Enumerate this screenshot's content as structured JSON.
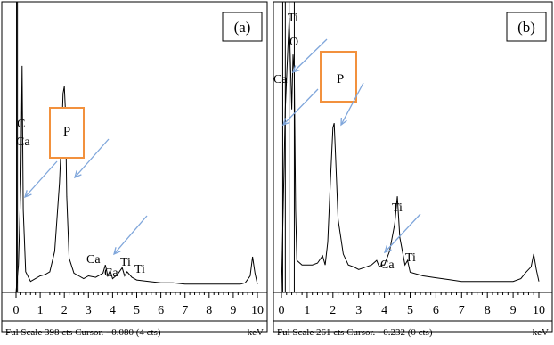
{
  "chart_data": [
    {
      "type": "line",
      "panel_label": "(a)",
      "xlabel": "keV",
      "x_ticks": [
        "0",
        "1",
        "2",
        "3",
        "4",
        "5",
        "6",
        "7",
        "8",
        "9",
        "10"
      ],
      "xlim": [
        0,
        10
      ],
      "footer": "Ful Scale 398 cts Cursor. −0.080 (4 cts)",
      "full_scale_cts": 398,
      "boxed_label": "P",
      "accent_color": "#F2913D",
      "arrow_color": "#7FA6DB",
      "spectrum": {
        "x": [
          0.0,
          0.1,
          0.2,
          0.25,
          0.3,
          0.4,
          0.6,
          0.8,
          1.0,
          1.2,
          1.4,
          1.6,
          1.8,
          1.9,
          1.95,
          2.0,
          2.05,
          2.1,
          2.2,
          2.4,
          2.6,
          2.8,
          3.0,
          3.3,
          3.6,
          3.7,
          3.8,
          3.9,
          4.0,
          4.2,
          4.4,
          4.5,
          4.6,
          4.8,
          5.0,
          5.5,
          6.0,
          6.5,
          7.0,
          7.5,
          8.0,
          8.5,
          9.0,
          9.3,
          9.5,
          9.7,
          9.8,
          9.9,
          10.0
        ],
        "y": [
          0,
          20,
          80,
          165,
          60,
          15,
          8,
          10,
          12,
          13,
          15,
          30,
          80,
          120,
          145,
          150,
          130,
          70,
          25,
          14,
          12,
          10,
          12,
          11,
          14,
          20,
          12,
          16,
          10,
          13,
          18,
          12,
          15,
          11,
          9,
          8,
          7,
          7,
          6,
          6,
          6,
          6,
          6,
          6,
          7,
          12,
          26,
          14,
          6
        ]
      },
      "peak_labels": [
        {
          "text": "C",
          "x": 0.1
        },
        {
          "text": "Ca",
          "x": 0.2
        },
        {
          "text": "Ca",
          "x": 3.7
        },
        {
          "text": "Ca",
          "x": 4.0
        },
        {
          "text": "Ti",
          "x": 4.5
        },
        {
          "text": "Ti",
          "x": 4.95
        }
      ]
    },
    {
      "type": "line",
      "panel_label": "(b)",
      "xlabel": "keV",
      "x_ticks": [
        "0",
        "1",
        "2",
        "3",
        "4",
        "5",
        "6",
        "7",
        "8",
        "9",
        "10"
      ],
      "xlim": [
        0,
        10
      ],
      "footer": "Ful Scale 261 cts Cursor. −0.232 (0 cts)",
      "full_scale_cts": 261,
      "boxed_label": "P",
      "accent_color": "#F2913D",
      "arrow_color": "#7FA6DB",
      "spectrum": {
        "x": [
          0.0,
          0.15,
          0.3,
          0.4,
          0.45,
          0.5,
          0.55,
          0.6,
          0.8,
          1.0,
          1.2,
          1.4,
          1.6,
          1.7,
          1.8,
          1.9,
          2.0,
          2.05,
          2.1,
          2.2,
          2.4,
          2.6,
          2.8,
          3.0,
          3.3,
          3.5,
          3.7,
          3.8,
          3.9,
          4.0,
          4.2,
          4.4,
          4.5,
          4.6,
          4.8,
          4.9,
          5.0,
          5.5,
          6.0,
          6.5,
          7.0,
          7.5,
          8.0,
          8.5,
          9.0,
          9.3,
          9.5,
          9.7,
          9.8,
          9.9,
          10.0
        ],
        "y": [
          0,
          200,
          300,
          200,
          260,
          240,
          90,
          35,
          30,
          30,
          30,
          32,
          40,
          30,
          55,
          120,
          180,
          185,
          150,
          80,
          42,
          30,
          28,
          25,
          28,
          30,
          35,
          28,
          30,
          30,
          45,
          75,
          105,
          60,
          30,
          35,
          22,
          18,
          16,
          14,
          12,
          12,
          12,
          12,
          12,
          15,
          22,
          28,
          42,
          25,
          12
        ]
      },
      "peak_labels": [
        {
          "text": "Ti",
          "x": 0.55
        },
        {
          "text": "O",
          "x": 0.55
        },
        {
          "text": "Ca",
          "x": 0.2
        },
        {
          "text": "Ti",
          "x": 4.5
        },
        {
          "text": "Ca",
          "x": 4.1
        },
        {
          "text": "Ti",
          "x": 4.95
        }
      ]
    }
  ]
}
